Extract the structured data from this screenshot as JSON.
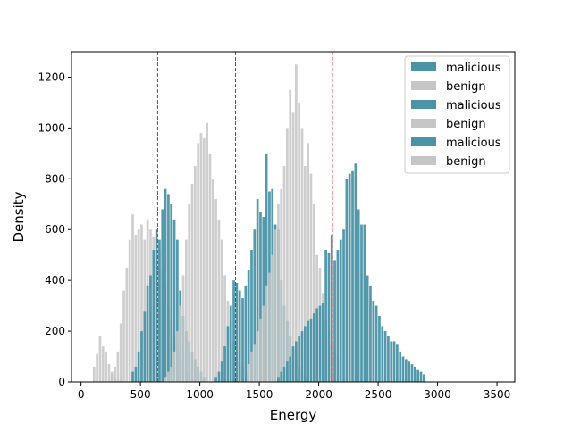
{
  "chart_data": {
    "type": "bar",
    "title": "",
    "xlabel": "Energy",
    "ylabel": "Density",
    "xlim": [
      -80,
      3650
    ],
    "ylim": [
      0,
      1300
    ],
    "xticks": [
      0,
      500,
      1000,
      1500,
      2000,
      2500,
      3000,
      3500
    ],
    "yticks": [
      0,
      200,
      400,
      600,
      800,
      1000,
      1200
    ],
    "bin_width": 25,
    "thresholds": [
      645,
      1300,
      2115
    ],
    "legend_position": "top-right",
    "legend": [
      "malicious",
      "benign",
      "malicious",
      "benign",
      "malicious",
      "benign"
    ],
    "colors": {
      "malicious": "#4a94a6",
      "benign": "#c6c6c6",
      "threshold": "#e31a1c"
    },
    "series": [
      {
        "name": "benign",
        "start": 100,
        "values": [
          60,
          110,
          180,
          140,
          120,
          70,
          40,
          20,
          10,
          5,
          0,
          0,
          0,
          0,
          0,
          0,
          0,
          0,
          0,
          0,
          0,
          0,
          0,
          0
        ]
      },
      {
        "name": "benign",
        "start": 250,
        "values": [
          30,
          60,
          120,
          230,
          360,
          450,
          560,
          660,
          580,
          600,
          620,
          560,
          640,
          600,
          570,
          480,
          520,
          440,
          380,
          300,
          240,
          180,
          150,
          110,
          80,
          50,
          30,
          20,
          10
        ]
      },
      {
        "name": "malicious",
        "start": 425,
        "values": [
          40,
          60,
          120,
          200,
          280,
          380,
          420,
          520,
          600,
          560,
          680,
          760,
          740,
          700,
          640,
          560,
          360,
          260,
          200,
          160,
          120,
          90,
          60,
          40,
          20
        ]
      },
      {
        "name": "benign",
        "start": 700,
        "values": [
          20,
          40,
          60,
          120,
          200,
          300,
          420,
          560,
          700,
          780,
          850,
          940,
          980,
          960,
          1020,
          900,
          800,
          720,
          640,
          560,
          420,
          320,
          240,
          160,
          120,
          80,
          60,
          40,
          20,
          10
        ]
      },
      {
        "name": "malicious",
        "start": 1125,
        "values": [
          20,
          40,
          80,
          140,
          220,
          300,
          400,
          390,
          360,
          330,
          380,
          440,
          520,
          600,
          720,
          670,
          650,
          900,
          750,
          760,
          620,
          600,
          400,
          300,
          240,
          180,
          130,
          90,
          60,
          40,
          20,
          10
        ]
      },
      {
        "name": "benign",
        "start": 1400,
        "values": [
          70,
          120,
          150,
          200,
          250,
          300,
          380,
          430,
          500,
          600,
          700,
          760,
          850,
          1000,
          1150,
          1060,
          1250,
          1100,
          1000,
          850,
          940,
          820,
          700,
          500,
          450,
          350,
          250,
          200,
          150,
          120,
          100
        ]
      },
      {
        "name": "malicious",
        "start": 1650,
        "values": [
          20,
          40,
          60,
          80,
          100,
          140,
          160,
          180,
          200,
          220,
          240,
          250,
          270,
          290,
          300,
          310,
          520,
          510,
          580,
          480,
          520,
          560,
          600,
          800,
          820,
          830,
          860,
          680,
          620,
          620,
          420,
          380,
          320,
          300,
          260,
          220,
          200,
          180,
          160,
          160,
          150,
          120,
          100,
          90,
          80,
          70,
          60,
          50,
          40,
          30
        ]
      }
    ]
  }
}
